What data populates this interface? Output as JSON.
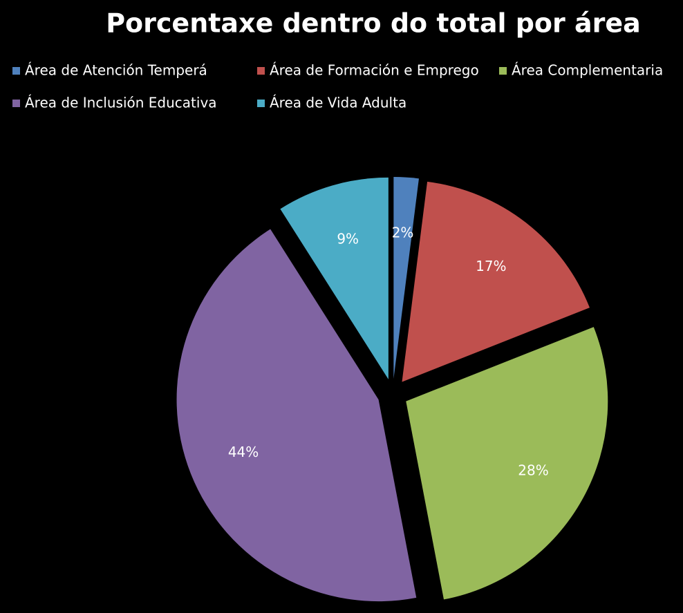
{
  "chart_data": {
    "type": "pie",
    "title": "Porcentaxe dentro do total por área",
    "categories": [
      "Área de Atención Temperá",
      "Área de Formación e Emprego",
      "Área Complementaria",
      "Área de Inclusión Educativa",
      "Área de Vida Adulta"
    ],
    "values": [
      2,
      17,
      28,
      44,
      9
    ],
    "value_labels": [
      "2%",
      "17%",
      "28%",
      "44%",
      "9%"
    ],
    "colors": [
      "#4f81bd",
      "#c0504d",
      "#9bbb59",
      "#8064a2",
      "#4bacc6"
    ],
    "legend": "top"
  }
}
